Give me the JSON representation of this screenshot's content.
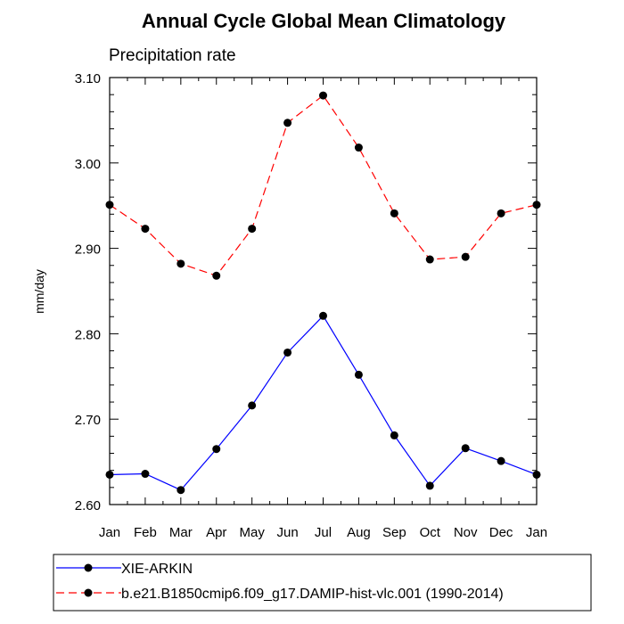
{
  "chart_data": {
    "type": "line",
    "title": "Annual Cycle Global Mean Climatology",
    "subtitle": "Precipitation rate",
    "xlabel": "",
    "ylabel": "mm/day",
    "categories": [
      "Jan",
      "Feb",
      "Mar",
      "Apr",
      "May",
      "Jun",
      "Jul",
      "Aug",
      "Sep",
      "Oct",
      "Nov",
      "Dec",
      "Jan"
    ],
    "ylim": [
      2.6,
      3.1
    ],
    "yticks": [
      "2.60",
      "2.70",
      "2.80",
      "2.90",
      "3.00",
      "3.10"
    ],
    "grid": false,
    "legend_position": "bottom",
    "series": [
      {
        "name": "XIE-ARKIN",
        "color": "#0000ff",
        "dash": "solid",
        "marker": "circle",
        "values": [
          2.635,
          2.636,
          2.617,
          2.665,
          2.716,
          2.778,
          2.821,
          2.752,
          2.681,
          2.622,
          2.666,
          2.651,
          2.635
        ]
      },
      {
        "name": "b.e21.B1850cmip6.f09_g17.DAMIP-hist-vlc.001 (1990-2014)",
        "color": "#ff0000",
        "dash": "dashed",
        "marker": "circle",
        "values": [
          2.951,
          2.923,
          2.882,
          2.868,
          2.923,
          3.047,
          3.079,
          3.018,
          2.941,
          2.887,
          2.89,
          2.941,
          2.951
        ]
      }
    ]
  }
}
